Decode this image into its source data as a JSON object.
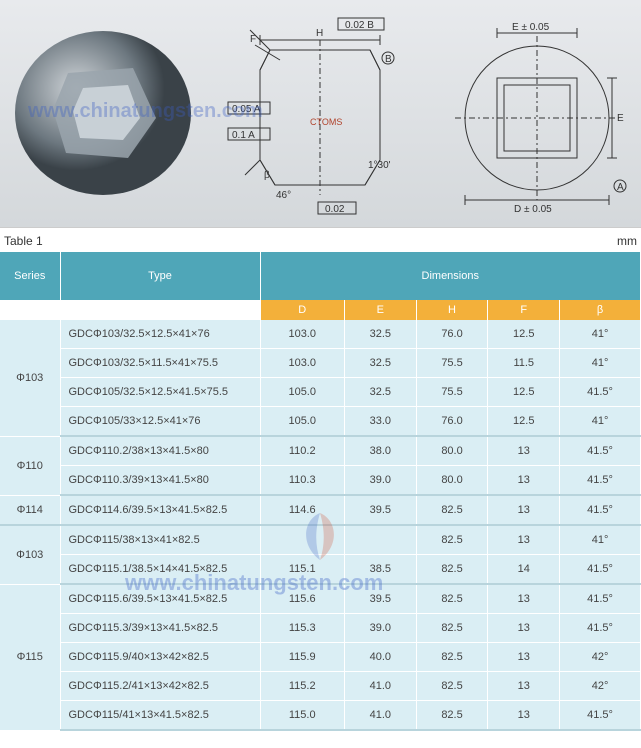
{
  "diagrams": {
    "watermark_text": "www.chinatungsten.com",
    "top_left": {
      "note": "3D shaded hexagonal insert render"
    },
    "center": {
      "labels": {
        "H": "H",
        "F": "F",
        "B": "B",
        "angle1": "46°",
        "angle2": "1°30'",
        "beta": "β",
        "tol1": "0.02",
        "tol2": "0.02 B",
        "tol3": "0.05 A",
        "tol4": "0.1 A",
        "ctoms": "CTOMS"
      }
    },
    "right": {
      "labels": {
        "E_tol": "E ± 0.05",
        "D_tol": "D ± 0.05",
        "E": "E",
        "A": "A"
      }
    }
  },
  "table": {
    "title": "Table 1",
    "unit": "mm",
    "header": {
      "series": "Series",
      "type": "Type",
      "dimensions": "Dimensions"
    },
    "dim_cols": [
      "D",
      "E",
      "H",
      "F",
      "β"
    ],
    "groups": [
      {
        "series": "Φ103",
        "rows": [
          {
            "type": "GDCΦ103/32.5×12.5×41×76",
            "D": "103.0",
            "E": "32.5",
            "H": "76.0",
            "F": "12.5",
            "beta": "41°"
          },
          {
            "type": "GDCΦ103/32.5×11.5×41×75.5",
            "D": "103.0",
            "E": "32.5",
            "H": "75.5",
            "F": "11.5",
            "beta": "41°"
          },
          {
            "type": "GDCΦ105/32.5×12.5×41.5×75.5",
            "D": "105.0",
            "E": "32.5",
            "H": "75.5",
            "F": "12.5",
            "beta": "41.5°"
          },
          {
            "type": "GDCΦ105/33×12.5×41×76",
            "D": "105.0",
            "E": "33.0",
            "H": "76.0",
            "F": "12.5",
            "beta": "41°"
          }
        ]
      },
      {
        "series": "Φ110",
        "rows": [
          {
            "type": "GDCΦ110.2/38×13×41.5×80",
            "D": "110.2",
            "E": "38.0",
            "H": "80.0",
            "F": "13",
            "beta": "41.5°"
          },
          {
            "type": "GDCΦ110.3/39×13×41.5×80",
            "D": "110.3",
            "E": "39.0",
            "H": "80.0",
            "F": "13",
            "beta": "41.5°"
          }
        ]
      },
      {
        "series": "Φ114",
        "rows": [
          {
            "type": "GDCΦ114.6/39.5×13×41.5×82.5",
            "D": "114.6",
            "E": "39.5",
            "H": "82.5",
            "F": "13",
            "beta": "41.5°"
          }
        ]
      },
      {
        "series": "Φ103",
        "rows": [
          {
            "type": "GDCΦ115/38×13×41×82.5",
            "D": "",
            "E": "",
            "H": "82.5",
            "F": "13",
            "beta": "41°"
          },
          {
            "type": "GDCΦ115.1/38.5×14×41.5×82.5",
            "D": "115.1",
            "E": "38.5",
            "H": "82.5",
            "F": "14",
            "beta": "41.5°"
          }
        ]
      },
      {
        "series": "Φ115",
        "rows": [
          {
            "type": "GDCΦ115.6/39.5×13×41.5×82.5",
            "D": "115.6",
            "E": "39.5",
            "H": "82.5",
            "F": "13",
            "beta": "41.5°"
          },
          {
            "type": "GDCΦ115.3/39×13×41.5×82.5",
            "D": "115.3",
            "E": "39.0",
            "H": "82.5",
            "F": "13",
            "beta": "41.5°"
          },
          {
            "type": "GDCΦ115.9/40×13×42×82.5",
            "D": "115.9",
            "E": "40.0",
            "H": "82.5",
            "F": "13",
            "beta": "42°"
          },
          {
            "type": "GDCΦ115.2/41×13×42×82.5",
            "D": "115.2",
            "E": "41.0",
            "H": "82.5",
            "F": "13",
            "beta": "42°"
          },
          {
            "type": "GDCΦ115/41×13×41.5×82.5",
            "D": "115.0",
            "E": "41.0",
            "H": "82.5",
            "F": "13",
            "beta": "41.5°"
          }
        ]
      }
    ]
  },
  "styling": {
    "header_bg": "#4fa6b8",
    "subhdr_bg": "#f3b03a",
    "cell_bg": "#daeef4",
    "text_color": "#444444",
    "watermark_color": "#3a5ec4"
  }
}
